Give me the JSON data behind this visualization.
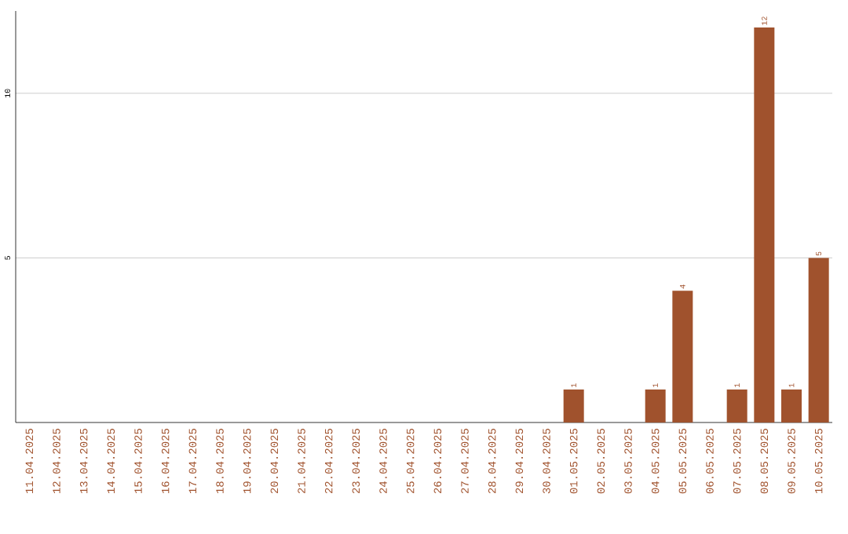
{
  "chart_data": {
    "type": "bar",
    "categories": [
      "11.04.2025",
      "12.04.2025",
      "13.04.2025",
      "14.04.2025",
      "15.04.2025",
      "16.04.2025",
      "17.04.2025",
      "18.04.2025",
      "19.04.2025",
      "20.04.2025",
      "21.04.2025",
      "22.04.2025",
      "23.04.2025",
      "24.04.2025",
      "25.04.2025",
      "26.04.2025",
      "27.04.2025",
      "28.04.2025",
      "29.04.2025",
      "30.04.2025",
      "01.05.2025",
      "02.05.2025",
      "03.05.2025",
      "04.05.2025",
      "05.05.2025",
      "06.05.2025",
      "07.05.2025",
      "08.05.2025",
      "09.05.2025",
      "10.05.2025"
    ],
    "values": [
      0,
      0,
      0,
      0,
      0,
      0,
      0,
      0,
      0,
      0,
      0,
      0,
      0,
      0,
      0,
      0,
      0,
      0,
      0,
      0,
      1,
      0,
      0,
      1,
      4,
      0,
      1,
      12,
      1,
      5
    ],
    "value_labels": [
      null,
      null,
      null,
      null,
      null,
      null,
      null,
      null,
      null,
      null,
      null,
      null,
      null,
      null,
      null,
      null,
      null,
      null,
      null,
      null,
      "1",
      null,
      null,
      "1",
      "4",
      null,
      "1",
      "12",
      "1",
      "5"
    ],
    "color": "#a0522d",
    "ylim": [
      0,
      12.5
    ],
    "yticks": [
      5,
      10
    ],
    "grid": "y"
  }
}
